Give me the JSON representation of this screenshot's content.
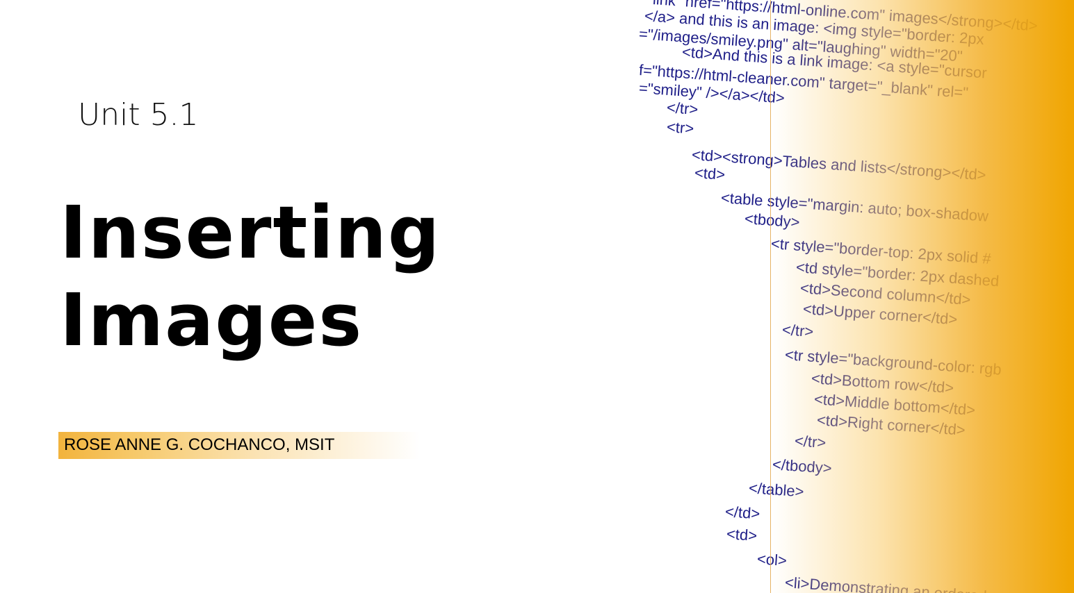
{
  "slide": {
    "unit": "Unit 5.1",
    "title_line1": "Inserting",
    "title_line2": "Images",
    "author": "ROSE ANNE G. COCHANCO, MSIT"
  },
  "code_image": {
    "lines": [
      "link\" href=\"https://html-online.com\" images</strong></td>",
      "</a> and this is an image: <img style=\"border: 2px",
      "=\"/images/smiley.png\" alt=\"laughing\" width=\"20\"",
      "<td>And this is a link image: <a style=\"cursor",
      "f=\"https://html-cleaner.com\" target=\"_blank\" rel=\"",
      "=\"smiley\" /></a></td>",
      "</tr>",
      "<tr>",
      "<td><strong>Tables and lists</strong></td>",
      "<td>",
      "<table style=\"margin: auto; box-shadow",
      "<tbody>",
      "<tr style=\"border-top: 2px solid #",
      "<td style=\"border: 2px dashed",
      "<td>Second column</td>",
      "<td>Upper corner</td>",
      "</tr>",
      "<tr style=\"background-color: rgb",
      "<td>Bottom row</td>",
      "<td>Middle bottom</td>",
      "<td>Right corner</td>",
      "</tr>",
      "</tbody>",
      "</table>",
      "</td>",
      "<td>",
      "<ol>",
      "<li>Demonstrating an ordered"
    ]
  },
  "colors": {
    "accent": "#f0a500",
    "title": "#000000",
    "background": "#ffffff"
  }
}
